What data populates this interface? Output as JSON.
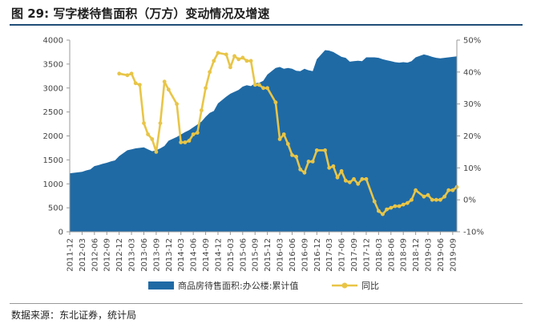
{
  "header": {
    "figure_number": "图 29:",
    "title": "写字楼待售面积（万方）变动情况及增速"
  },
  "footer": {
    "source": "数据来源：东北证券，统计局"
  },
  "colors": {
    "area": "#1f6aa5",
    "line": "#e8c547",
    "axis": "#999999"
  },
  "chart_data": {
    "type": "area+line",
    "title": "写字楼待售面积（万方）变动情况及增速",
    "x_tick_labels": [
      "2011-12",
      "2012-03",
      "2012-06",
      "2012-09",
      "2012-12",
      "2013-03",
      "2013-06",
      "2013-09",
      "2013-12",
      "2014-03",
      "2014-06",
      "2014-09",
      "2014-12",
      "2015-03",
      "2015-06",
      "2015-09",
      "2015-12",
      "2016-03",
      "2016-06",
      "2016-09",
      "2016-12",
      "2017-03",
      "2017-06",
      "2017-09",
      "2017-12",
      "2018-03",
      "2018-06",
      "2018-09",
      "2018-12",
      "2019-03",
      "2019-06",
      "2019-09"
    ],
    "x_start": "2011-12",
    "x_end": "2019-10",
    "y_left": {
      "min": 0,
      "max": 4000,
      "ticks": [
        0,
        500,
        1000,
        1500,
        2000,
        2500,
        3000,
        3500,
        4000
      ]
    },
    "y_right": {
      "min": -10,
      "max": 50,
      "ticks": [
        "-10%",
        "0%",
        "10%",
        "20%",
        "30%",
        "40%",
        "50%"
      ]
    },
    "legend_position": "bottom",
    "series": [
      {
        "name": "商品房待售面积:办公楼:累计值",
        "kind": "area",
        "axis": "left",
        "points": [
          [
            "2011-12",
            1220
          ],
          [
            "2012-02",
            1240
          ],
          [
            "2012-03",
            1250
          ],
          [
            "2012-04",
            1280
          ],
          [
            "2012-05",
            1300
          ],
          [
            "2012-06",
            1370
          ],
          [
            "2012-07",
            1390
          ],
          [
            "2012-08",
            1420
          ],
          [
            "2012-09",
            1440
          ],
          [
            "2012-10",
            1470
          ],
          [
            "2012-11",
            1490
          ],
          [
            "2012-12",
            1580
          ],
          [
            "2013-02",
            1700
          ],
          [
            "2013-03",
            1720
          ],
          [
            "2013-04",
            1740
          ],
          [
            "2013-05",
            1750
          ],
          [
            "2013-06",
            1760
          ],
          [
            "2013-07",
            1720
          ],
          [
            "2013-08",
            1680
          ],
          [
            "2013-09",
            1700
          ],
          [
            "2013-10",
            1740
          ],
          [
            "2013-11",
            1790
          ],
          [
            "2013-12",
            1900
          ],
          [
            "2014-02",
            1980
          ],
          [
            "2014-03",
            2030
          ],
          [
            "2014-04",
            2080
          ],
          [
            "2014-05",
            2120
          ],
          [
            "2014-06",
            2180
          ],
          [
            "2014-07",
            2240
          ],
          [
            "2014-08",
            2300
          ],
          [
            "2014-09",
            2400
          ],
          [
            "2014-10",
            2480
          ],
          [
            "2014-11",
            2520
          ],
          [
            "2014-12",
            2680
          ],
          [
            "2015-02",
            2820
          ],
          [
            "2015-03",
            2880
          ],
          [
            "2015-04",
            2920
          ],
          [
            "2015-05",
            2960
          ],
          [
            "2015-06",
            3030
          ],
          [
            "2015-07",
            3060
          ],
          [
            "2015-08",
            3040
          ],
          [
            "2015-09",
            3100
          ],
          [
            "2015-10",
            3110
          ],
          [
            "2015-11",
            3150
          ],
          [
            "2015-12",
            3280
          ],
          [
            "2016-02",
            3420
          ],
          [
            "2016-03",
            3440
          ],
          [
            "2016-04",
            3400
          ],
          [
            "2016-05",
            3420
          ],
          [
            "2016-06",
            3400
          ],
          [
            "2016-07",
            3360
          ],
          [
            "2016-08",
            3350
          ],
          [
            "2016-09",
            3400
          ],
          [
            "2016-10",
            3370
          ],
          [
            "2016-11",
            3350
          ],
          [
            "2016-12",
            3600
          ],
          [
            "2017-02",
            3790
          ],
          [
            "2017-03",
            3780
          ],
          [
            "2017-04",
            3750
          ],
          [
            "2017-05",
            3700
          ],
          [
            "2017-06",
            3650
          ],
          [
            "2017-07",
            3630
          ],
          [
            "2017-08",
            3550
          ],
          [
            "2017-09",
            3560
          ],
          [
            "2017-10",
            3570
          ],
          [
            "2017-11",
            3560
          ],
          [
            "2017-12",
            3640
          ],
          [
            "2018-02",
            3640
          ],
          [
            "2018-03",
            3630
          ],
          [
            "2018-04",
            3600
          ],
          [
            "2018-05",
            3580
          ],
          [
            "2018-06",
            3560
          ],
          [
            "2018-07",
            3540
          ],
          [
            "2018-08",
            3530
          ],
          [
            "2018-09",
            3540
          ],
          [
            "2018-10",
            3530
          ],
          [
            "2018-11",
            3560
          ],
          [
            "2018-12",
            3640
          ],
          [
            "2019-02",
            3700
          ],
          [
            "2019-03",
            3680
          ],
          [
            "2019-04",
            3650
          ],
          [
            "2019-05",
            3630
          ],
          [
            "2019-06",
            3620
          ],
          [
            "2019-07",
            3630
          ],
          [
            "2019-08",
            3640
          ],
          [
            "2019-09",
            3650
          ],
          [
            "2019-10",
            3660
          ]
        ]
      },
      {
        "name": "同比",
        "kind": "line",
        "axis": "right",
        "points": [
          [
            "2012-12",
            39.5
          ],
          [
            "2013-02",
            39
          ],
          [
            "2013-03",
            39.5
          ],
          [
            "2013-04",
            36.5
          ],
          [
            "2013-05",
            36
          ],
          [
            "2013-06",
            24
          ],
          [
            "2013-07",
            20.5
          ],
          [
            "2013-08",
            19
          ],
          [
            "2013-09",
            15
          ],
          [
            "2013-10",
            24
          ],
          [
            "2013-11",
            37
          ],
          [
            "2013-12",
            34.5
          ],
          [
            "2014-02",
            30
          ],
          [
            "2014-03",
            18
          ],
          [
            "2014-04",
            18
          ],
          [
            "2014-05",
            18.5
          ],
          [
            "2014-06",
            20.5
          ],
          [
            "2014-07",
            21
          ],
          [
            "2014-08",
            28
          ],
          [
            "2014-09",
            35
          ],
          [
            "2014-10",
            40
          ],
          [
            "2014-11",
            43.5
          ],
          [
            "2014-12",
            46
          ],
          [
            "2015-02",
            45.5
          ],
          [
            "2015-03",
            41.5
          ],
          [
            "2015-04",
            45
          ],
          [
            "2015-05",
            44
          ],
          [
            "2015-06",
            44.5
          ],
          [
            "2015-07",
            43.5
          ],
          [
            "2015-08",
            43.5
          ],
          [
            "2015-09",
            36
          ],
          [
            "2015-10",
            36
          ],
          [
            "2015-11",
            35
          ],
          [
            "2015-12",
            35
          ],
          [
            "2016-02",
            30.5
          ],
          [
            "2016-03",
            19
          ],
          [
            "2016-04",
            20.5
          ],
          [
            "2016-05",
            17.5
          ],
          [
            "2016-06",
            14
          ],
          [
            "2016-07",
            13.5
          ],
          [
            "2016-08",
            9.5
          ],
          [
            "2016-09",
            8.5
          ],
          [
            "2016-10",
            12
          ],
          [
            "2016-11",
            12
          ],
          [
            "2016-12",
            15.5
          ],
          [
            "2017-02",
            15.5
          ],
          [
            "2017-03",
            10
          ],
          [
            "2017-04",
            10.5
          ],
          [
            "2017-05",
            7
          ],
          [
            "2017-06",
            9
          ],
          [
            "2017-07",
            6
          ],
          [
            "2017-08",
            5.5
          ],
          [
            "2017-09",
            6.5
          ],
          [
            "2017-10",
            5
          ],
          [
            "2017-11",
            6.5
          ],
          [
            "2017-12",
            6.5
          ],
          [
            "2018-02",
            -0.5
          ],
          [
            "2018-03",
            -3.5
          ],
          [
            "2018-04",
            -4.5
          ],
          [
            "2018-05",
            -3
          ],
          [
            "2018-06",
            -2.5
          ],
          [
            "2018-07",
            -2
          ],
          [
            "2018-08",
            -2
          ],
          [
            "2018-09",
            -1.5
          ],
          [
            "2018-10",
            -1
          ],
          [
            "2018-11",
            0
          ],
          [
            "2018-12",
            3
          ],
          [
            "2019-02",
            1
          ],
          [
            "2019-03",
            1.5
          ],
          [
            "2019-04",
            0
          ],
          [
            "2019-05",
            0
          ],
          [
            "2019-06",
            0
          ],
          [
            "2019-07",
            1
          ],
          [
            "2019-08",
            3
          ],
          [
            "2019-09",
            3
          ],
          [
            "2019-10",
            4
          ]
        ]
      }
    ]
  }
}
